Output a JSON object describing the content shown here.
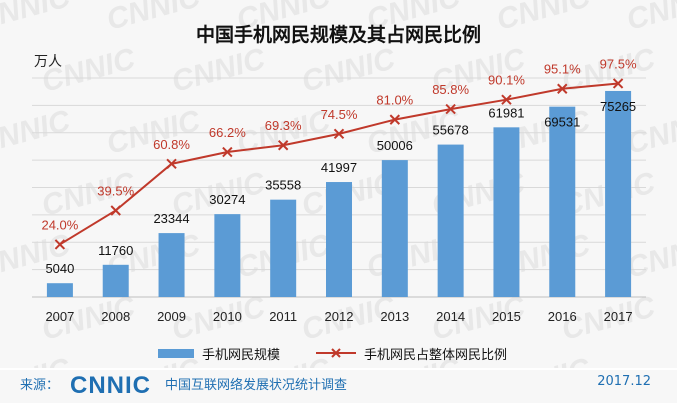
{
  "title": "中国手机网民规模及其占网民比例",
  "unit_label": "万人",
  "watermark": "CNNIC",
  "chart_data": {
    "type": "bar",
    "title": "中国手机网民规模及其占网民比例",
    "categories": [
      "2007",
      "2008",
      "2009",
      "2010",
      "2011",
      "2012",
      "2013",
      "2014",
      "2015",
      "2016",
      "2017"
    ],
    "series": [
      {
        "name": "手机网民规模",
        "type": "bar",
        "unit": "万人",
        "values": [
          5040,
          11760,
          23344,
          30274,
          35558,
          41997,
          50006,
          55678,
          61981,
          69531,
          75265
        ],
        "color": "#5b9bd5"
      },
      {
        "name": "手机网民占整体网民比例",
        "type": "line",
        "unit": "%",
        "values": [
          24.0,
          39.5,
          60.8,
          66.2,
          69.3,
          74.5,
          81.0,
          85.8,
          90.1,
          95.1,
          97.5
        ],
        "labels": [
          "24.0%",
          "39.5%",
          "60.8%",
          "66.2%",
          "69.3%",
          "74.5%",
          "81.0%",
          "85.8%",
          "90.1%",
          "95.1%",
          "97.5%"
        ],
        "color": "#c0392b",
        "marker": "x"
      }
    ],
    "ylabel": "万人",
    "ylim": [
      0,
      80000
    ],
    "y2lim": [
      0,
      100
    ],
    "grid": true,
    "legend": "bottom"
  },
  "legend": {
    "bar_label": "手机网民规模",
    "line_label": "手机网民占整体网民比例"
  },
  "footer": {
    "source_label": "来源：",
    "logo_text": "CNNIC",
    "report_title": "中国互联网络发展状况统计调查",
    "date": "2017.12"
  },
  "colors": {
    "bar": "#5b9bd5",
    "line": "#c0392b",
    "brand": "#1f6fb2"
  }
}
